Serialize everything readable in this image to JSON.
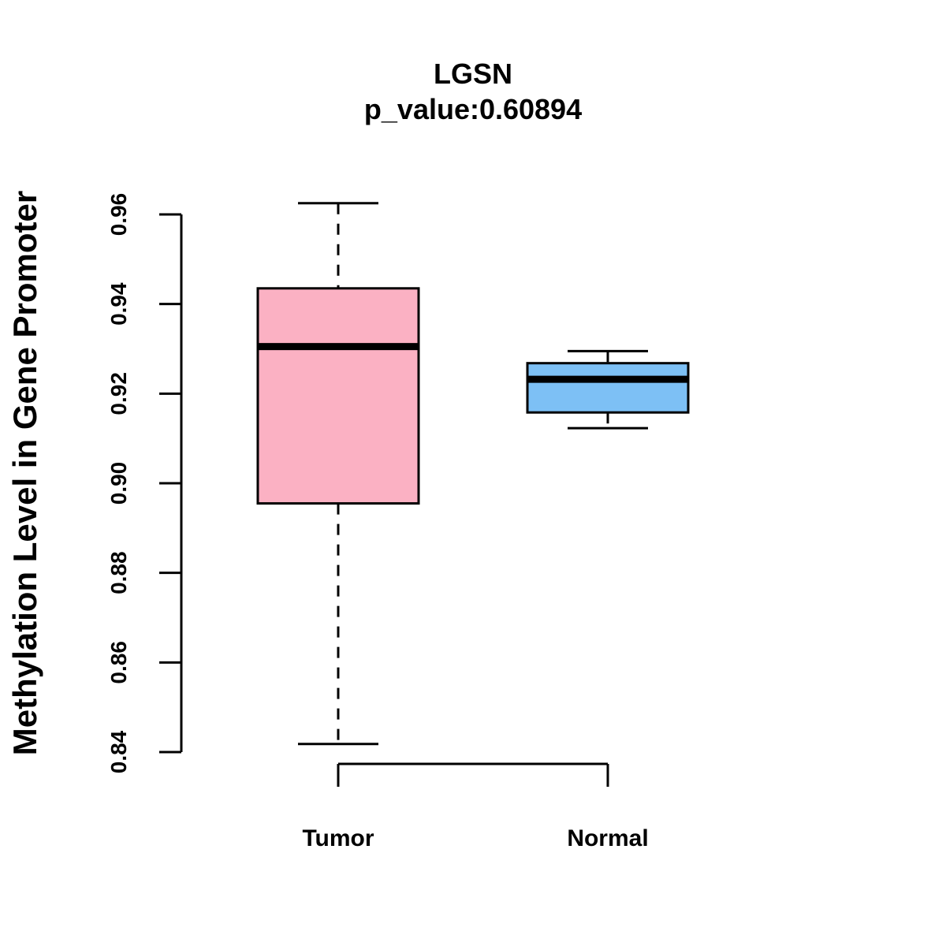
{
  "chart_data": {
    "type": "boxplot",
    "title": "LGSN",
    "subtitle": "p_value:0.60894",
    "xlabel": "",
    "ylabel": "Methylation Level in Gene Promoter",
    "ylim": [
      0.84,
      0.96
    ],
    "yticks": [
      "0.84",
      "0.86",
      "0.88",
      "0.90",
      "0.92",
      "0.94",
      "0.96"
    ],
    "categories": [
      "Tumor",
      "Normal"
    ],
    "boxes": [
      {
        "name": "Tumor",
        "color": "#FBB1C3",
        "whisker_low": 0.8418,
        "q1": 0.8955,
        "median": 0.9305,
        "q3": 0.9435,
        "whisker_high": 0.9625,
        "whisker_style": "dashed"
      },
      {
        "name": "Normal",
        "color": "#7DC0F5",
        "whisker_low": 0.9123,
        "q1": 0.9158,
        "median": 0.9232,
        "q3": 0.9268,
        "whisker_high": 0.9295,
        "whisker_style": "dashed"
      }
    ],
    "grid": false,
    "legend": "none"
  }
}
